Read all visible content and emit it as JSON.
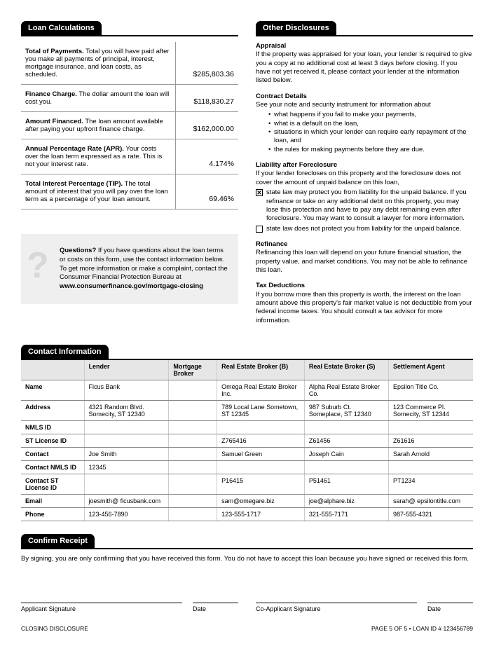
{
  "loan_calc": {
    "header": "Loan Calculations",
    "rows": [
      {
        "label": "Total of Payments.",
        "desc": " Total you will have paid after you make all payments of principal, interest, mortgage insurance, and loan costs, as scheduled.",
        "value": "$285,803.36"
      },
      {
        "label": "Finance Charge.",
        "desc": " The dollar amount the loan will cost you.",
        "value": "$118,830.27"
      },
      {
        "label": "Amount Financed.",
        "desc": " The loan amount available after paying your upfront finance charge.",
        "value": "$162,000.00"
      },
      {
        "label": "Annual Percentage Rate (APR).",
        "desc": " Your costs over the loan term expressed as a rate. This is not your interest rate.",
        "value": "4.174%"
      },
      {
        "label": "Total Interest Percentage (TIP).",
        "desc": " The total amount of interest that you will pay over the loan term as a percentage of your loan amount.",
        "value": "69.46%"
      }
    ]
  },
  "questions": {
    "title": "Questions?",
    "body": " If you have questions about the loan terms or costs on this form, use the contact information below. To get more information or make a complaint, contact the Consumer Financial Protection Bureau at",
    "url": "www.consumerfinance.gov/mortgage-closing"
  },
  "other": {
    "header": "Other Disclosures",
    "appraisal": {
      "title": "Appraisal",
      "body": "If the property was appraised for your loan, your lender is required to give you a copy at no additional cost at least 3 days before closing. If you have not yet received it, please contact your lender at the information listed below."
    },
    "contract": {
      "title": "Contract Details",
      "lead": "See your note and security instrument for information about",
      "bullets": [
        "what happens if you fail to make your payments,",
        "what is a default on the loan,",
        "situations in which your lender can require early repayment of the loan, and",
        "the rules for making payments before they are due."
      ]
    },
    "liability": {
      "title": "Liability after Foreclosure",
      "lead": "If your lender forecloses on this property and the foreclosure does not cover the amount of unpaid balance on this loan,",
      "opt1": "state law may protect you from liability for the unpaid balance. If you refinance or take on any additional debt on this property, you may lose this protection and have to pay any debt remaining even after foreclosure. You may want to consult a lawyer for more information.",
      "opt2": "state law does not protect you from liability for the unpaid balance."
    },
    "refinance": {
      "title": "Refinance",
      "body": "Refinancing this loan will depend on your future financial situation, the property value, and market conditions. You may not be able to refinance this loan."
    },
    "tax": {
      "title": "Tax Deductions",
      "body": "If you borrow more than this property is worth, the interest on the loan amount above this property's fair market value is not deductible from your federal income taxes. You should consult a tax advisor for more information."
    }
  },
  "contact": {
    "header": "Contact Information",
    "cols": [
      "",
      "Lender",
      "Mortgage Broker",
      "Real Estate Broker (B)",
      "Real Estate Broker (S)",
      "Settlement Agent"
    ],
    "rows": [
      {
        "h": "Name",
        "c": [
          "Ficus Bank",
          "",
          "Omega Real Estate Broker Inc.",
          "Alpha Real Estate Broker Co.",
          "Epsilon Title Co."
        ]
      },
      {
        "h": "Address",
        "c": [
          "4321 Random Blvd. Somecity, ST 12340",
          "",
          "789 Local Lane Sometown, ST 12345",
          "987 Suburb Ct. Someplace, ST 12340",
          "123 Commerce Pl. Somecity, ST 12344"
        ]
      },
      {
        "h": "NMLS ID",
        "c": [
          "",
          "",
          "",
          "",
          ""
        ]
      },
      {
        "h": "ST License ID",
        "c": [
          "",
          "",
          "Z765416",
          "Z61456",
          "Z61616"
        ]
      },
      {
        "h": "Contact",
        "c": [
          "Joe Smith",
          "",
          "Samuel Green",
          "Joseph Cain",
          "Sarah Arnold"
        ]
      },
      {
        "h": "Contact NMLS ID",
        "c": [
          "12345",
          "",
          "",
          "",
          ""
        ]
      },
      {
        "h": "Contact ST License ID",
        "c": [
          "",
          "",
          "P16415",
          "P51461",
          "PT1234"
        ]
      },
      {
        "h": "Email",
        "c": [
          "joesmith@ ficusbank.com",
          "",
          "sam@omegare.biz",
          "joe@alphare.biz",
          "sarah@ epsilontitle.com"
        ]
      },
      {
        "h": "Phone",
        "c": [
          "123-456-7890",
          "",
          "123-555-1717",
          "321-555-7171",
          "987-555-4321"
        ]
      }
    ]
  },
  "confirm": {
    "header": "Confirm Receipt",
    "body": "By signing, you are only confirming that you have received this form. You do not have to accept this loan because you have signed or received this form.",
    "sig1": "Applicant Signature",
    "sig2": "Co-Applicant Signature",
    "date": "Date"
  },
  "footer": {
    "left": "CLOSING DISCLOSURE",
    "right": "PAGE 5 OF 5 • LOAN ID # 123456789"
  }
}
